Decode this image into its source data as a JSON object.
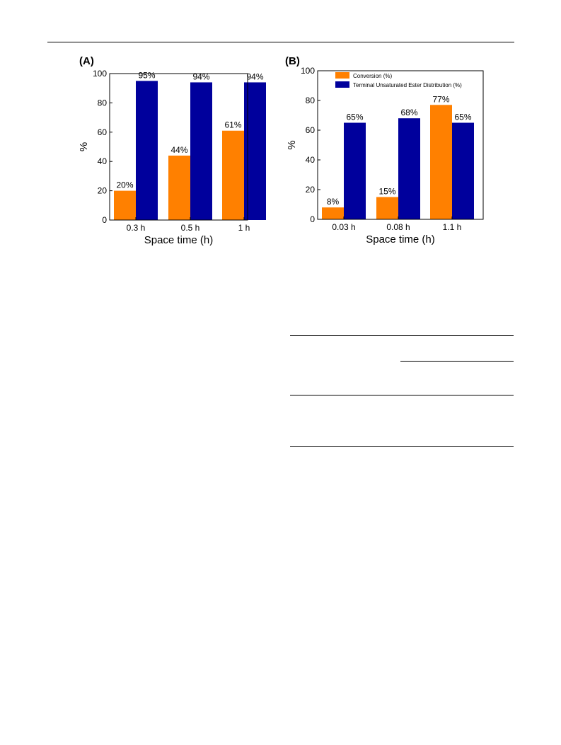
{
  "figure": {
    "panels": [
      {
        "panel_label": "(A)"
      },
      {
        "panel_label": "(B)"
      }
    ]
  },
  "chart_data": [
    {
      "type": "bar",
      "title": "(A)",
      "categories": [
        "0.3 h",
        "0.5 h",
        "1 h"
      ],
      "series": [
        {
          "values": [
            20,
            44,
            61
          ],
          "labels": [
            "20%",
            "44%",
            "61%"
          ],
          "color": "#ff8000"
        },
        {
          "values": [
            95,
            94,
            94
          ],
          "labels": [
            "95%",
            "94%",
            "94%"
          ],
          "color": "#00009c"
        }
      ],
      "xlabel": "Space time (h)",
      "ylabel": "%",
      "ylim": [
        0,
        100
      ],
      "yticks": [
        "0",
        "20",
        "40",
        "60",
        "80",
        "100"
      ],
      "grid": false,
      "legend": "none"
    },
    {
      "type": "bar",
      "title": "(B)",
      "categories": [
        "0.03 h",
        "0.08 h",
        "1.1 h"
      ],
      "series": [
        {
          "name": "Conversion (%)",
          "values": [
            8,
            15,
            77
          ],
          "labels": [
            "8%",
            "15%",
            "77%"
          ],
          "color": "#ff8000"
        },
        {
          "name": "Terminal Unsaturated Ester Distribution (%)",
          "values": [
            65,
            68,
            65
          ],
          "labels": [
            "65%",
            "68%",
            "65%"
          ],
          "color": "#00009c"
        }
      ],
      "xlabel": "Space time (h)",
      "ylabel": "%",
      "ylim": [
        0,
        100
      ],
      "yticks": [
        "0",
        "20",
        "40",
        "60",
        "80",
        "100"
      ],
      "grid": false,
      "legend": "top-left"
    }
  ]
}
